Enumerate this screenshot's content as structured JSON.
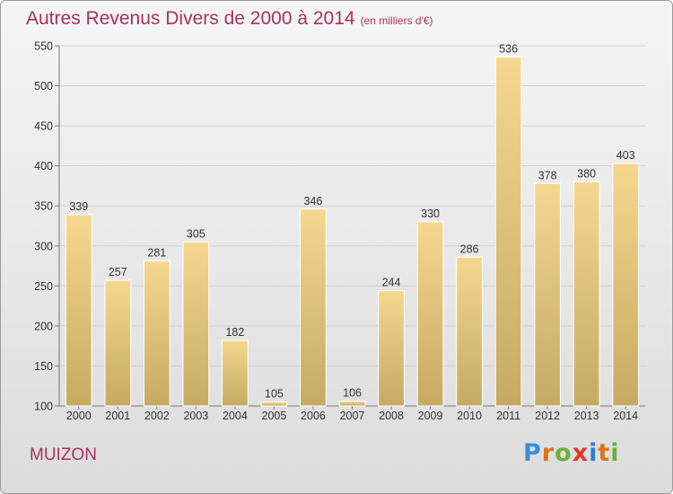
{
  "header": {
    "title": "Autres Revenus Divers de 2000 à 2014",
    "subtitle": "(en milliers d'€)"
  },
  "footer": {
    "city": "MUIZON",
    "brand": "Proxiti",
    "brand_letter_colors": [
      "#3a8fd6",
      "#e0721e",
      "#6bb33a",
      "#e03a2a",
      "#2f7fd0",
      "#e0721e",
      "#6bb33a"
    ]
  },
  "chart_data": {
    "type": "bar",
    "title": "Autres Revenus Divers de 2000 à 2014",
    "subtitle": "(en milliers d'€)",
    "categories": [
      "2000",
      "2001",
      "2002",
      "2003",
      "2004",
      "2005",
      "2006",
      "2007",
      "2008",
      "2009",
      "2010",
      "2011",
      "2012",
      "2013",
      "2014"
    ],
    "values": [
      339,
      257,
      281,
      305,
      182,
      105,
      346,
      106,
      244,
      330,
      286,
      536,
      378,
      380,
      403
    ],
    "xlabel": "",
    "ylabel": "",
    "ylim": [
      100,
      550
    ],
    "yticks": [
      100,
      150,
      200,
      250,
      300,
      350,
      400,
      450,
      500,
      550
    ],
    "grid": true,
    "bar_color": "#f5d78f",
    "bar_color_dark": "#c7aa62"
  }
}
